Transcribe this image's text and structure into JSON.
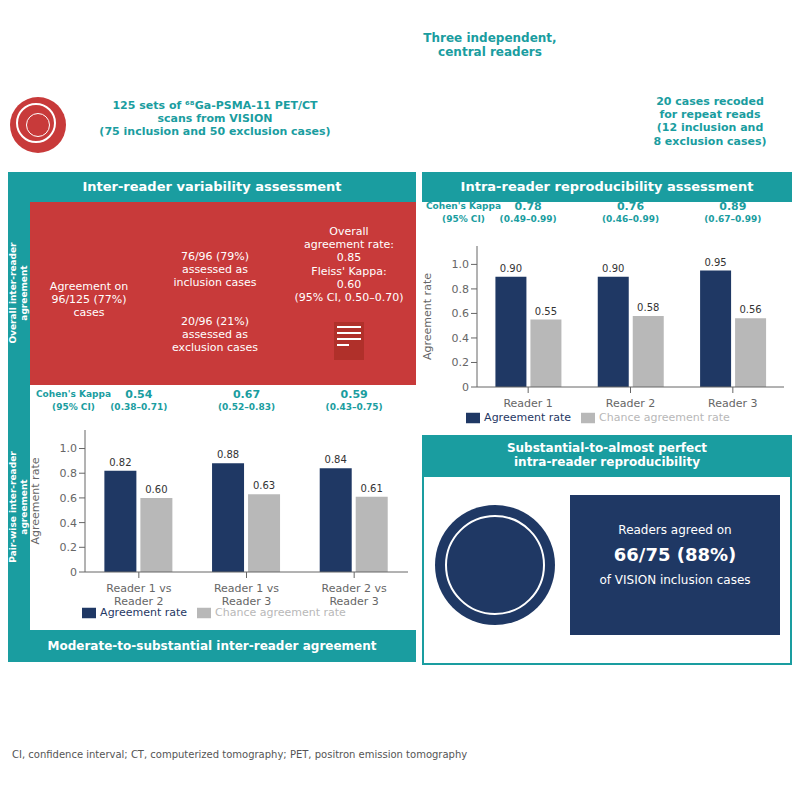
{
  "chart_data": [
    {
      "type": "bar",
      "title": "Intra-reader reproducibility assessment",
      "categories": [
        "Reader 1",
        "Reader 2",
        "Reader 3"
      ],
      "series": [
        {
          "name": "Agreement rate",
          "color": "#1F3864",
          "values": [
            0.9,
            0.9,
            0.95
          ],
          "value_labels": [
            "0.90",
            "0.90",
            "0.95"
          ]
        },
        {
          "name": "Chance agreement rate",
          "color": "#B8B8B8",
          "values": [
            0.55,
            0.58,
            0.56
          ],
          "value_labels": [
            "0.55",
            "0.58",
            "0.56"
          ]
        }
      ],
      "ylabel": "Agreement rate",
      "ylim": [
        0,
        1.15
      ],
      "yticks": [
        0,
        0.2,
        0.4,
        0.6,
        0.8,
        {
          "value": 1.0,
          "label": "1.0"
        }
      ],
      "grid": false,
      "legend": "bottom",
      "data_labels": true,
      "annotations": [
        "20 cases recoded\nfor repeat reads\n(12 inclusion and\n8 exclusion cases)",
        "Cohen's Kappa\n(95% CI)",
        "0.78\n(0.49–0.99)",
        "0.76\n(0.46–0.99)",
        "0.89\n(0.67–0.99)",
        "Substantial-to-almost perfect\nintra-reader reproducibility",
        "Readers agreed on",
        "66/75 (88%)",
        "of VISION inclusion cases"
      ]
    },
    {
      "type": "bar",
      "title": "Inter-reader variability assessment",
      "categories": [
        "Reader 1 vs\nReader 2",
        "Reader 1 vs\nReader 3",
        "Reader 2 vs\nReader 3"
      ],
      "series": [
        {
          "name": "Agreement rate",
          "color": "#1F3864",
          "values": [
            0.82,
            0.88,
            0.84
          ],
          "value_labels": [
            "0.82",
            "0.88",
            "0.84"
          ]
        },
        {
          "name": "Chance agreement rate",
          "color": "#B8B8B8",
          "values": [
            0.6,
            0.63,
            0.61
          ],
          "value_labels": [
            "0.60",
            "0.63",
            "0.61"
          ]
        }
      ],
      "ylabel": "Agreement rate",
      "ylim": [
        0,
        1.15
      ],
      "yticks": [
        0,
        0.2,
        0.4,
        0.6,
        0.8,
        {
          "value": 1.0,
          "label": "1.0"
        }
      ],
      "grid": false,
      "legend": "bottom",
      "data_labels": true,
      "annotations": [
        "Three independent,\ncentral readers",
        "125 sets of ⁶⁸Ga-PSMA-11 PET/CT\nscans from VISION\n(75 inclusion and 50 exclusion cases)",
        "Overall inter-reader\nagreement",
        "Agreement on\n96/125 (77%)\ncases",
        "76/96 (79%)\nassessed as\ninclusion cases",
        "20/96 (21%)\nassessed as\nexclusion cases",
        "Overall\nagreement rate:\n0.85\nFleiss' Kappa:\n0.60\n(95% CI, 0.50–0.70)",
        "Pair-wise inter-reader\nagreement",
        "Cohen's Kappa\n(95% CI)",
        "0.54\n(0.38–0.71)",
        "0.67\n(0.52–0.83)",
        "0.59\n(0.43–0.75)",
        "Moderate-to-substantial inter-reader agreement",
        "CI, confidence interval; CT, computerized tomography; PET, positron emission tomography"
      ]
    }
  ]
}
